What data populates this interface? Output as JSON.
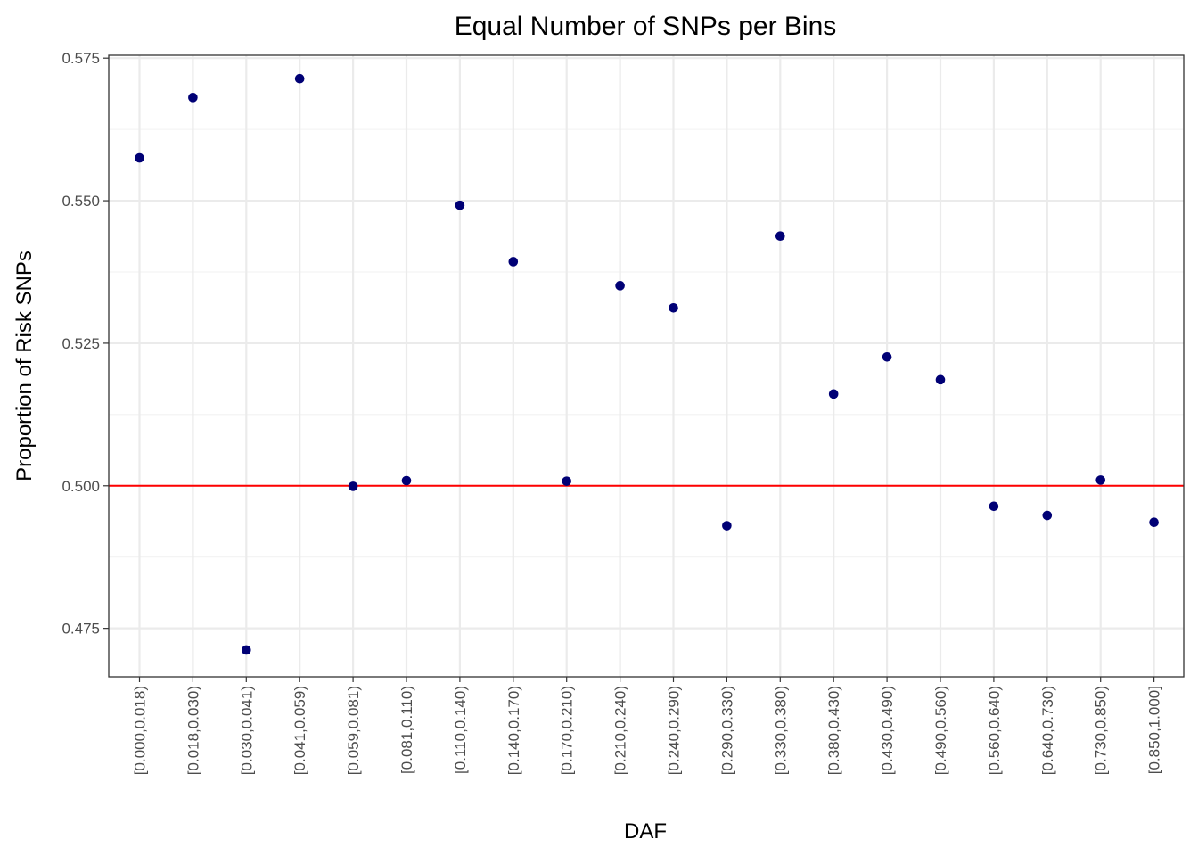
{
  "chart_data": {
    "type": "scatter",
    "title": "Equal Number of SNPs per Bins",
    "xlabel": "DAF",
    "ylabel": "Proportion of Risk SNPs",
    "ylim": [
      0.4665,
      0.5755
    ],
    "yticks": [
      "0.475",
      "0.500",
      "0.525",
      "0.550",
      "0.575"
    ],
    "grid": true,
    "legend": "none",
    "point_color": "#000075",
    "reference_line": {
      "y": 0.5,
      "color": "#ff0000"
    },
    "categories": [
      "[0.000,0.018)",
      "[0.018,0.030)",
      "[0.030,0.041)",
      "[0.041,0.059)",
      "[0.059,0.081)",
      "[0.081,0.110)",
      "[0.110,0.140)",
      "[0.140,0.170)",
      "[0.170,0.210)",
      "[0.210,0.240)",
      "[0.240,0.290)",
      "[0.290,0.330)",
      "[0.330,0.380)",
      "[0.380,0.430)",
      "[0.430,0.490)",
      "[0.490,0.560)",
      "[0.560,0.640)",
      "[0.640,0.730)",
      "[0.730,0.850)",
      "[0.850,1.000]"
    ],
    "values": [
      0.5575,
      0.5681,
      0.4712,
      0.5714,
      0.4999,
      0.5009,
      0.5492,
      0.5393,
      0.5008,
      0.5351,
      0.5312,
      0.493,
      0.5438,
      0.5161,
      0.5226,
      0.5186,
      0.4964,
      0.4948,
      0.501,
      0.4936
    ]
  }
}
